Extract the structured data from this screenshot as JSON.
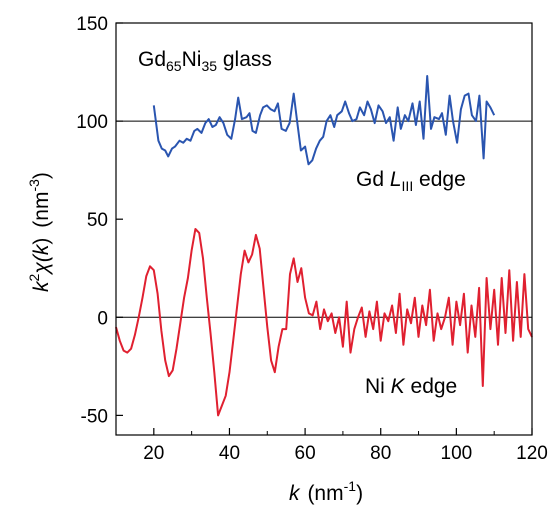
{
  "chart_data": {
    "type": "line",
    "title": "",
    "annotation_main": {
      "prefix": "Gd",
      "sub1": "65",
      "mid": "Ni",
      "sub2": "35",
      "suffix": " glass"
    },
    "xlabel": {
      "var": "k",
      "unit": "(nm",
      "exp": "-1",
      "close": ")"
    },
    "ylabel": {
      "var": "k",
      "sup": "2",
      "chi": "χ(",
      "arg": "k",
      "close": ")",
      "unit": "(nm",
      "exp": "-3",
      "uclose": ")"
    },
    "xlim": [
      10,
      120
    ],
    "ylim": [
      -60,
      150
    ],
    "xticks": [
      "20",
      "40",
      "60",
      "80",
      "100",
      "120"
    ],
    "yticks": [
      "150",
      "100",
      "50",
      "0",
      "-50"
    ],
    "reference_lines": [
      0,
      100
    ],
    "series": [
      {
        "label_parts": {
          "a": "Gd ",
          "b": "L",
          "c": "III",
          "d": " edge"
        },
        "color": "#2a55b0",
        "x": [
          20.0,
          21.2,
          22.1,
          23.0,
          23.8,
          24.8,
          25.6,
          26.8,
          27.8,
          28.7,
          29.7,
          30.7,
          31.5,
          32.6,
          33.6,
          34.5,
          35.5,
          36.4,
          37.4,
          38.4,
          39.4,
          40.5,
          41.5,
          42.3,
          43.3,
          44.5,
          45.3,
          46.1,
          47.0,
          48.1,
          48.9,
          49.9,
          50.9,
          51.9,
          52.8,
          53.8,
          54.9,
          55.9,
          57.0,
          57.9,
          58.9,
          60.0,
          60.9,
          61.9,
          62.9,
          63.9,
          64.8,
          65.7,
          66.7,
          67.7,
          68.5,
          69.7,
          70.6,
          71.6,
          72.5,
          73.6,
          74.5,
          75.6,
          76.5,
          77.4,
          78.4,
          79.4,
          80.5,
          81.4,
          82.4,
          83.4,
          84.5,
          85.3,
          86.4,
          87.3,
          88.4,
          89.3,
          90.3,
          91.3,
          92.3,
          93.3,
          94.2,
          95.4,
          96.2,
          97.2,
          98.2,
          99.1,
          100.2,
          101.2,
          102.2,
          103.2,
          104.1,
          105.2,
          106.1,
          107.2,
          108.0,
          109.0,
          110.0
        ],
        "y": [
          108,
          90,
          86,
          85,
          82,
          86,
          87,
          90,
          89,
          91,
          90,
          95,
          96,
          94,
          99,
          101,
          97,
          98,
          102,
          99,
          93,
          91,
          101,
          112,
          101,
          102,
          104,
          95,
          94,
          103,
          107,
          108,
          106,
          105,
          109,
          96,
          95,
          99,
          114,
          100,
          85,
          87,
          78,
          80,
          86,
          90,
          92,
          100,
          103,
          97,
          103,
          105,
          110,
          104,
          100,
          101,
          107,
          103,
          110,
          106,
          99,
          108,
          105,
          99,
          102,
          90,
          107,
          96,
          103,
          100,
          109,
          98,
          110,
          91,
          123,
          96,
          102,
          101,
          104,
          93,
          113,
          100,
          89,
          106,
          113,
          114,
          103,
          100,
          113,
          81,
          110,
          107,
          103
        ]
      },
      {
        "label_parts": {
          "a": "Ni ",
          "b": "K",
          "c": "",
          "d": " edge"
        },
        "color": "#e02030",
        "x": [
          10.0,
          11.0,
          12.0,
          13.0,
          14.0,
          15.0,
          16.0,
          17.0,
          18.0,
          19.0,
          20.0,
          21.0,
          22.0,
          23.0,
          24.0,
          25.0,
          26.0,
          27.0,
          28.0,
          29.0,
          30.0,
          31.0,
          32.0,
          33.0,
          34.0,
          35.0,
          36.0,
          37.0,
          38.0,
          39.0,
          40.0,
          41.0,
          42.0,
          43.0,
          44.0,
          45.0,
          46.0,
          47.0,
          48.0,
          49.0,
          50.0,
          51.0,
          52.0,
          53.0,
          54.0,
          55.0,
          56.0,
          57.0,
          58.0,
          59.0,
          60.0,
          61.0,
          62.0,
          63.0,
          64.0,
          65.0,
          66.0,
          67.0,
          68.0,
          69.0,
          70.0,
          71.0,
          72.0,
          73.0,
          74.0,
          75.0,
          76.0,
          77.0,
          78.0,
          79.0,
          80.0,
          81.0,
          82.0,
          83.0,
          84.0,
          85.0,
          86.0,
          87.0,
          88.0,
          89.0,
          90.0,
          91.0,
          92.0,
          93.0,
          94.0,
          95.0,
          96.0,
          97.0,
          98.0,
          99.0,
          100.0,
          101.0,
          102.0,
          103.0,
          104.0,
          105.0,
          106.0,
          107.0,
          108.0,
          109.0,
          110.0,
          111.0,
          112.0,
          113.0,
          114.0,
          115.0,
          116.0,
          117.0,
          118.0,
          119.0,
          120.0
        ],
        "y": [
          -5,
          -12,
          -17,
          -18,
          -16,
          -9,
          0,
          10,
          21,
          26,
          24,
          12,
          -7,
          -22,
          -30,
          -27,
          -16,
          -3,
          10,
          20,
          34,
          45,
          43,
          30,
          10,
          -8,
          -28,
          -50,
          -45,
          -40,
          -28,
          -12,
          5,
          22,
          34,
          28,
          32,
          42,
          35,
          15,
          -5,
          -22,
          -28,
          -15,
          -6,
          -6,
          22,
          30,
          18,
          25,
          10,
          2,
          1,
          8,
          -6,
          4,
          -2,
          2,
          -8,
          0,
          -15,
          8,
          -18,
          -6,
          0,
          5,
          -10,
          3,
          -6,
          8,
          -12,
          2,
          -2,
          6,
          -8,
          12,
          -14,
          4,
          -3,
          10,
          -10,
          6,
          -4,
          14,
          -12,
          2,
          -6,
          0,
          10,
          -14,
          8,
          -4,
          12,
          -18,
          6,
          -10,
          15,
          -35,
          20,
          -6,
          14,
          -14,
          20,
          -8,
          24,
          -12,
          18,
          -10,
          22,
          -6,
          -10
        ]
      }
    ]
  }
}
